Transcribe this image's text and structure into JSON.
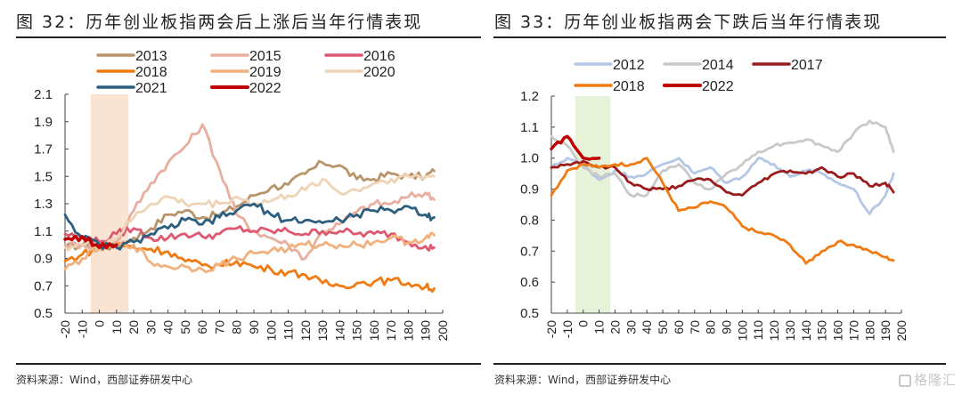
{
  "panels": {
    "left": {
      "title": "图 32：历年创业板指两会后上涨后当年行情表现",
      "source": "资料来源：Wind，西部证券研发中心"
    },
    "right": {
      "title": "图 33：历年创业板指两会下跌后当年行情表现",
      "source": "资料来源：Wind，西部证券研发中心"
    }
  },
  "watermark": "格隆汇",
  "chart_data": [
    {
      "type": "line",
      "title": "历年创业板指两会后上涨后当年行情表现",
      "xlabel": "",
      "ylabel": "",
      "xlim": [
        -20,
        200
      ],
      "ylim": [
        0.5,
        2.1
      ],
      "xticks": [
        -20,
        -10,
        0,
        10,
        20,
        30,
        40,
        50,
        60,
        70,
        80,
        90,
        100,
        110,
        120,
        130,
        140,
        150,
        160,
        170,
        180,
        190,
        200
      ],
      "yticks": [
        "0.5",
        "0.7",
        "0.9",
        "1.1",
        "1.3",
        "1.5",
        "1.7",
        "1.9",
        "2.1"
      ],
      "shaded_x_range": [
        -5,
        17
      ],
      "shade_color": "#f9e3d3",
      "grid": false,
      "legend_position": "top",
      "x": [
        -20,
        -10,
        0,
        10,
        20,
        30,
        40,
        50,
        60,
        70,
        80,
        90,
        100,
        110,
        120,
        130,
        140,
        150,
        160,
        170,
        180,
        190,
        195
      ],
      "series": [
        {
          "name": "2013",
          "color": "#b8946b",
          "values": [
            0.98,
            1.0,
            1.0,
            0.98,
            1.05,
            1.12,
            1.22,
            1.25,
            1.2,
            1.22,
            1.28,
            1.36,
            1.42,
            1.44,
            1.52,
            1.6,
            1.58,
            1.48,
            1.48,
            1.52,
            1.5,
            1.5,
            1.54
          ]
        },
        {
          "name": "2015",
          "color": "#e8aea0",
          "values": [
            1.0,
            1.0,
            1.0,
            1.02,
            1.25,
            1.45,
            1.6,
            1.72,
            1.88,
            1.55,
            1.22,
            1.1,
            1.05,
            1.0,
            0.9,
            1.1,
            1.15,
            1.24,
            1.3,
            1.3,
            1.35,
            1.38,
            1.33
          ]
        },
        {
          "name": "2016",
          "color": "#de5870",
          "values": [
            1.08,
            1.05,
            1.02,
            1.08,
            1.12,
            1.05,
            1.05,
            1.08,
            1.06,
            1.08,
            1.12,
            1.1,
            1.1,
            1.1,
            1.08,
            1.1,
            1.1,
            1.08,
            1.08,
            1.08,
            1.02,
            0.99,
            0.98
          ]
        },
        {
          "name": "2018",
          "color": "#f07b13",
          "values": [
            0.88,
            0.93,
            0.98,
            1.0,
            0.98,
            0.97,
            0.95,
            0.88,
            0.85,
            0.85,
            0.88,
            0.84,
            0.82,
            0.8,
            0.78,
            0.72,
            0.7,
            0.72,
            0.73,
            0.74,
            0.72,
            0.69,
            0.68
          ]
        },
        {
          "name": "2019",
          "color": "#f2b07c",
          "values": [
            0.82,
            0.9,
            0.97,
            1.0,
            1.0,
            0.87,
            0.84,
            0.84,
            0.82,
            0.85,
            0.9,
            0.94,
            0.96,
            0.97,
            1.0,
            1.0,
            1.0,
            1.0,
            1.02,
            1.05,
            1.02,
            1.05,
            1.07
          ]
        },
        {
          "name": "2020",
          "color": "#eed3b6",
          "values": [
            0.98,
            1.0,
            1.0,
            1.05,
            1.2,
            1.3,
            1.35,
            1.3,
            1.3,
            1.3,
            1.35,
            1.3,
            1.32,
            1.36,
            1.4,
            1.48,
            1.38,
            1.4,
            1.45,
            1.48,
            1.5,
            1.5,
            1.5
          ]
        },
        {
          "name": "2021",
          "color": "#2c5f7f",
          "values": [
            1.22,
            1.05,
            1.0,
            0.98,
            1.02,
            1.08,
            1.12,
            1.18,
            1.15,
            1.2,
            1.25,
            1.3,
            1.22,
            1.18,
            1.18,
            1.16,
            1.18,
            1.22,
            1.25,
            1.25,
            1.28,
            1.22,
            1.2
          ]
        },
        {
          "name": "2022",
          "color": "#c00000",
          "values": [
            1.04,
            1.06,
            0.98,
            1.0,
            null,
            null,
            null,
            null,
            null,
            null,
            null,
            null,
            null,
            null,
            null,
            null,
            null,
            null,
            null,
            null,
            null,
            null,
            null
          ]
        }
      ]
    },
    {
      "type": "line",
      "title": "历年创业板指两会下跌后当年行情表现",
      "xlabel": "",
      "ylabel": "",
      "xlim": [
        -20,
        200
      ],
      "ylim": [
        0.5,
        1.2
      ],
      "xticks": [
        -20,
        -10,
        0,
        10,
        20,
        30,
        40,
        50,
        60,
        70,
        80,
        90,
        100,
        110,
        120,
        130,
        140,
        150,
        160,
        170,
        180,
        190,
        200
      ],
      "yticks": [
        "0.5",
        "0.6",
        "0.7",
        "0.8",
        "0.9",
        "1.0",
        "1.1",
        "1.2"
      ],
      "shaded_x_range": [
        -5,
        17
      ],
      "shade_color": "#e6f3d9",
      "grid": false,
      "legend_position": "top",
      "x": [
        -20,
        -10,
        0,
        10,
        20,
        30,
        40,
        50,
        60,
        70,
        80,
        90,
        100,
        110,
        120,
        130,
        140,
        150,
        160,
        170,
        180,
        190,
        195
      ],
      "series": [
        {
          "name": "2012",
          "color": "#b4c7e7",
          "values": [
            0.97,
            1.0,
            0.98,
            0.93,
            0.96,
            0.94,
            0.95,
            0.98,
            1.0,
            0.95,
            0.97,
            0.92,
            0.94,
            1.0,
            0.98,
            0.94,
            0.96,
            0.95,
            0.92,
            0.9,
            0.82,
            0.88,
            0.95
          ]
        },
        {
          "name": "2014",
          "color": "#c9c9c9",
          "values": [
            1.07,
            1.04,
            0.97,
            0.94,
            0.95,
            0.88,
            0.88,
            0.96,
            0.98,
            0.92,
            0.9,
            0.95,
            0.98,
            1.02,
            1.04,
            1.05,
            1.06,
            1.04,
            1.02,
            1.08,
            1.12,
            1.1,
            1.02
          ]
        },
        {
          "name": "2017",
          "color": "#9b1c1c",
          "values": [
            0.97,
            0.98,
            0.99,
            0.97,
            0.97,
            0.92,
            0.9,
            0.9,
            0.91,
            0.93,
            0.93,
            0.89,
            0.88,
            0.92,
            0.95,
            0.96,
            0.95,
            0.97,
            0.94,
            0.95,
            0.91,
            0.92,
            0.89
          ]
        },
        {
          "name": "2018",
          "color": "#f07b13",
          "values": [
            0.88,
            0.96,
            0.98,
            0.97,
            0.98,
            0.98,
            1.0,
            0.92,
            0.83,
            0.84,
            0.86,
            0.84,
            0.78,
            0.76,
            0.75,
            0.72,
            0.66,
            0.7,
            0.73,
            0.72,
            0.7,
            0.68,
            0.67
          ]
        },
        {
          "name": "2022",
          "color": "#c00000",
          "values": [
            1.03,
            1.07,
            1.0,
            1.0,
            null,
            null,
            null,
            null,
            null,
            null,
            null,
            null,
            null,
            null,
            null,
            null,
            null,
            null,
            null,
            null,
            null,
            null,
            null
          ]
        }
      ]
    }
  ]
}
